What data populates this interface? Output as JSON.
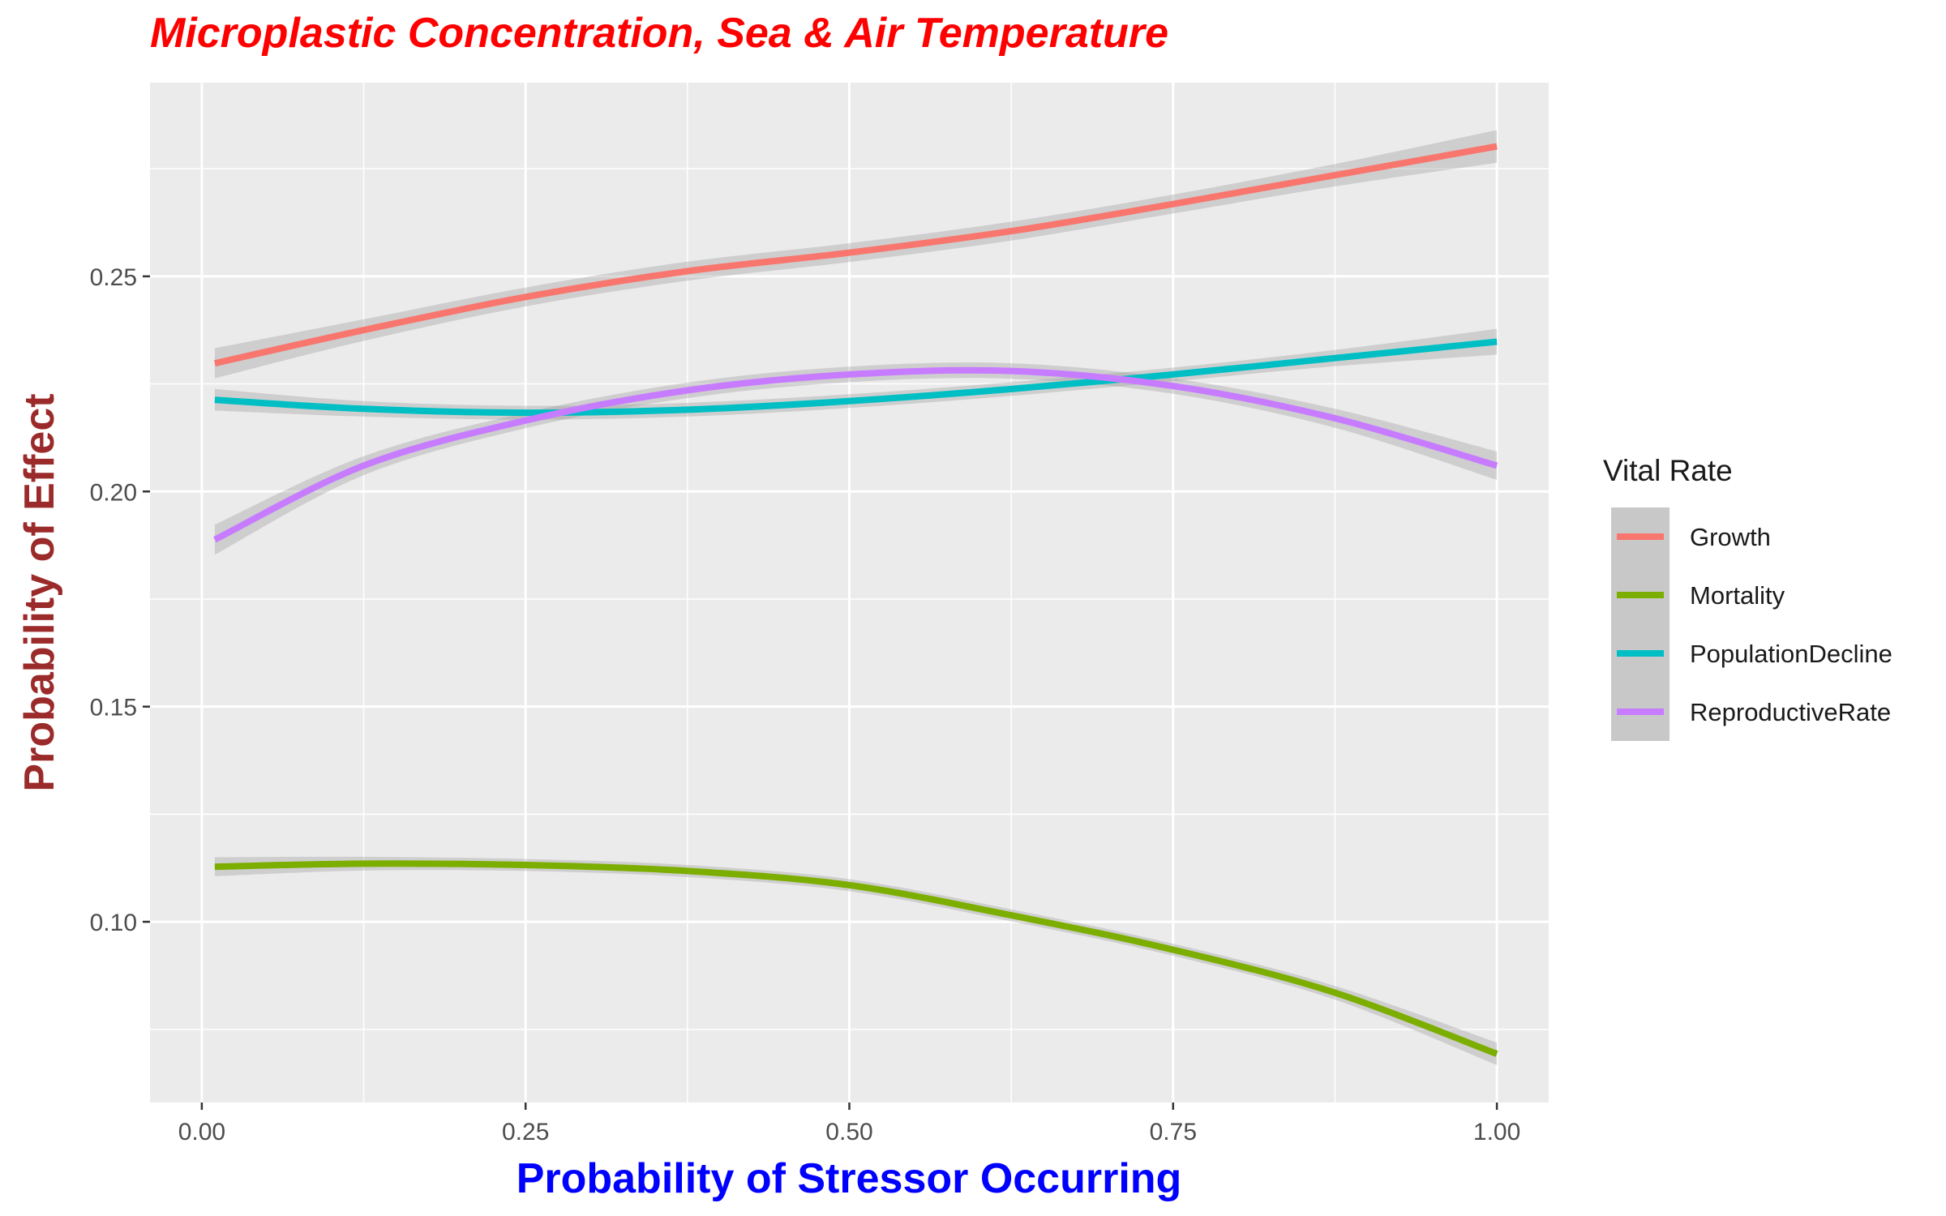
{
  "chart_data": {
    "type": "line",
    "title": "Microplastic Concentration, Sea & Air Temperature",
    "xlabel": "Probability of Stressor Occurring",
    "ylabel": "Probability of Effect",
    "xlim": [
      -0.04,
      1.04
    ],
    "ylim": [
      0.058,
      0.295
    ],
    "x_ticks": [
      0.0,
      0.25,
      0.5,
      0.75,
      1.0
    ],
    "x_tick_labels": [
      "0.00",
      "0.25",
      "0.50",
      "0.75",
      "1.00"
    ],
    "y_ticks": [
      0.1,
      0.15,
      0.2,
      0.25
    ],
    "y_tick_labels": [
      "0.10",
      "0.15",
      "0.20",
      "0.25"
    ],
    "grid": true,
    "legend": {
      "title": "Vital Rate",
      "position": "right"
    },
    "x": [
      0.01,
      0.125,
      0.25,
      0.375,
      0.5,
      0.625,
      0.75,
      0.875,
      1.0
    ],
    "series": [
      {
        "name": "Growth",
        "color": "#F8766D",
        "values": [
          0.2298,
          0.2375,
          0.2452,
          0.2512,
          0.2555,
          0.2605,
          0.2668,
          0.2735,
          0.2802
        ],
        "band": [
          0.0035,
          0.0025,
          0.0022,
          0.0022,
          0.0022,
          0.0022,
          0.0022,
          0.0026,
          0.0038
        ]
      },
      {
        "name": "Mortality",
        "color": "#7CAE00",
        "values": [
          0.1128,
          0.1135,
          0.1132,
          0.1118,
          0.1085,
          0.1015,
          0.0935,
          0.0835,
          0.0693
        ],
        "band": [
          0.0022,
          0.0016,
          0.0014,
          0.0014,
          0.0014,
          0.0014,
          0.0014,
          0.0016,
          0.0026
        ]
      },
      {
        "name": "PopulationDecline",
        "color": "#00BFC4",
        "values": [
          0.2213,
          0.2192,
          0.2183,
          0.219,
          0.221,
          0.2238,
          0.2272,
          0.231,
          0.2348
        ],
        "band": [
          0.0025,
          0.0018,
          0.0016,
          0.0016,
          0.0016,
          0.0016,
          0.0016,
          0.0019,
          0.003
        ]
      },
      {
        "name": "ReproductiveRate",
        "color": "#C77CFF",
        "values": [
          0.1888,
          0.206,
          0.2165,
          0.2235,
          0.2272,
          0.228,
          0.2245,
          0.217,
          0.206
        ],
        "band": [
          0.0035,
          0.0022,
          0.0018,
          0.0018,
          0.0018,
          0.0018,
          0.0018,
          0.0022,
          0.0033
        ]
      }
    ]
  }
}
